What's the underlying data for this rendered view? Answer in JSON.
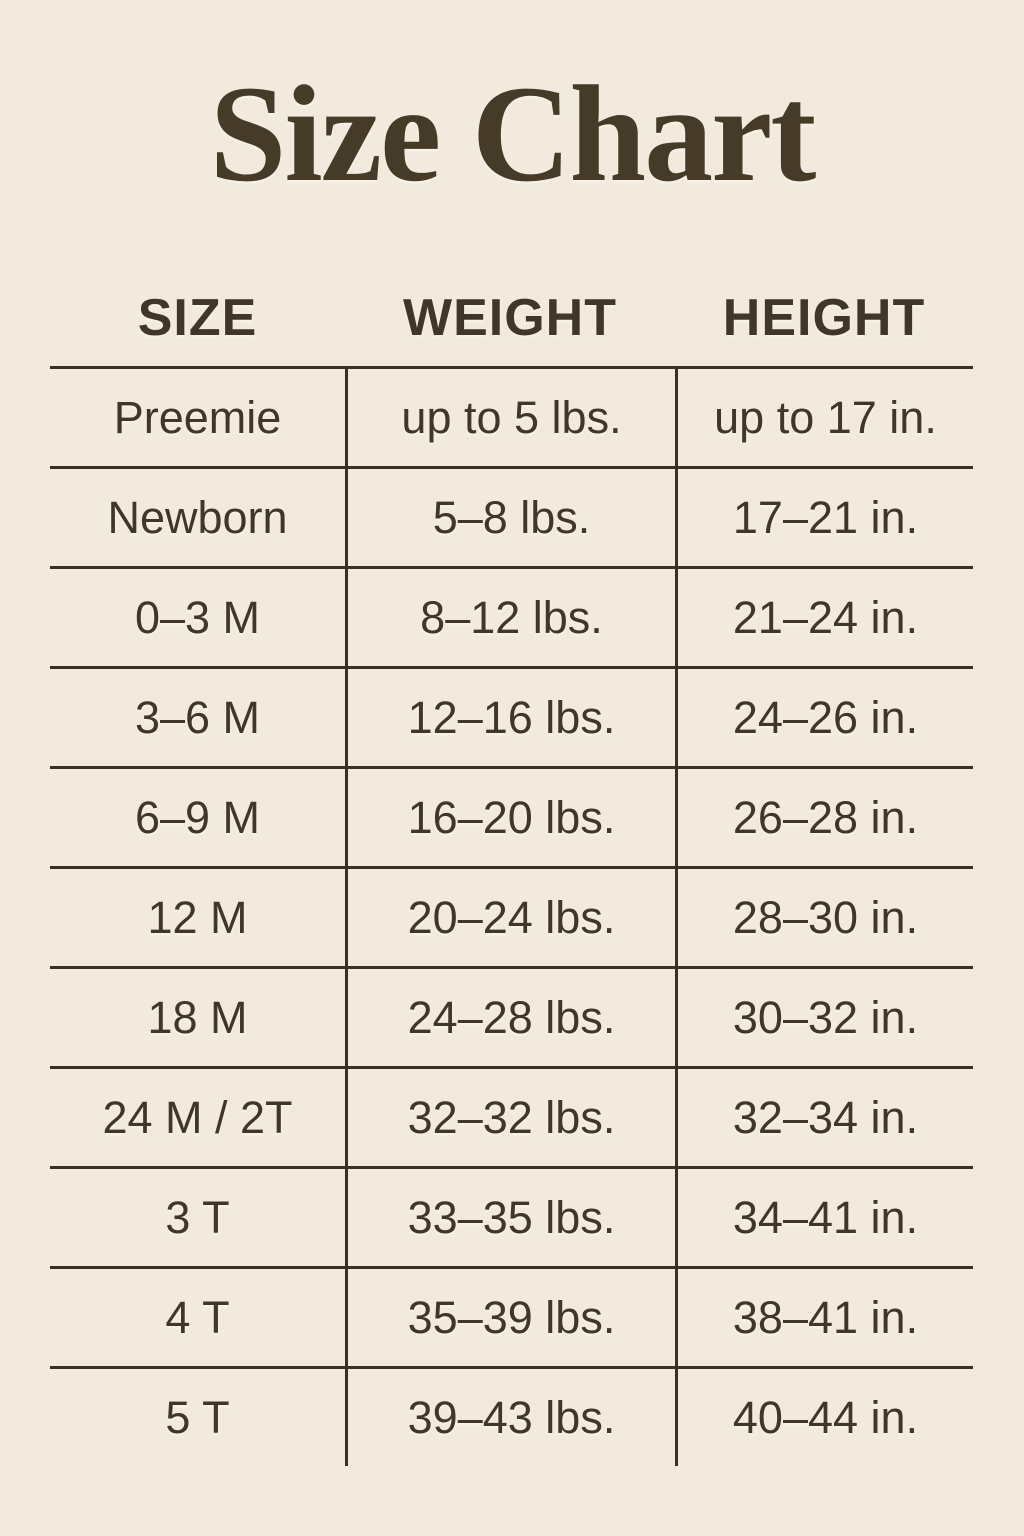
{
  "title": "Size Chart",
  "colors": {
    "background": "#f2ebdd",
    "text": "#41362a",
    "title": "#463a28",
    "line": "#3b3122"
  },
  "chart_data": {
    "type": "table",
    "title": "Size Chart",
    "columns": [
      "SIZE",
      "WEIGHT",
      "HEIGHT"
    ],
    "rows": [
      [
        "Preemie",
        "up to 5 lbs.",
        "up to 17 in."
      ],
      [
        "Newborn",
        "5–8 lbs.",
        "17–21 in."
      ],
      [
        "0–3 M",
        "8–12 lbs.",
        "21–24 in."
      ],
      [
        "3–6 M",
        "12–16 lbs.",
        "24–26 in."
      ],
      [
        "6–9 M",
        "16–20 lbs.",
        "26–28 in."
      ],
      [
        "12 M",
        "20–24 lbs.",
        "28–30 in."
      ],
      [
        "18 M",
        "24–28 lbs.",
        "30–32 in."
      ],
      [
        "24 M / 2T",
        "32–32 lbs.",
        "32–34 in."
      ],
      [
        "3 T",
        "33–35 lbs.",
        "34–41 in."
      ],
      [
        "4 T",
        "35–39 lbs.",
        "38–41 in."
      ],
      [
        "5 T",
        "39–43 lbs.",
        "40–44 in."
      ]
    ]
  }
}
